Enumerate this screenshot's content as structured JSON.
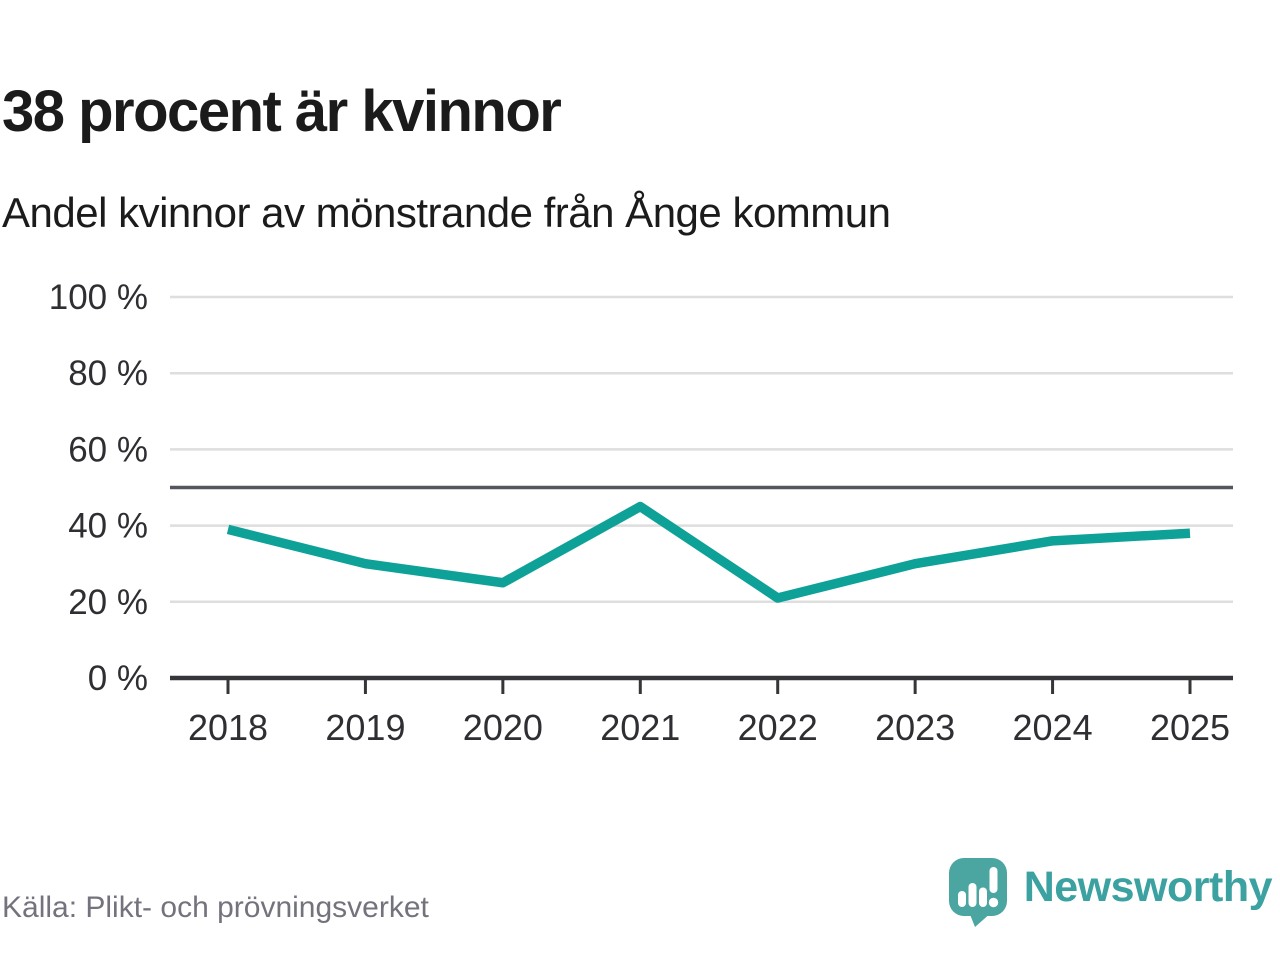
{
  "header": {
    "title": "38 procent är kvinnor",
    "subtitle": "Andel kvinnor av mönstrande från Ånge kommun"
  },
  "chart_data": {
    "type": "line",
    "title": "38 procent är kvinnor",
    "subtitle": "Andel kvinnor av mönstrande från Ånge kommun",
    "x": [
      "2018",
      "2019",
      "2020",
      "2021",
      "2022",
      "2023",
      "2024",
      "2025"
    ],
    "series": [
      {
        "name": "Andel kvinnor av mönstrande",
        "values": [
          39,
          30,
          25,
          45,
          21,
          30,
          36,
          38
        ]
      }
    ],
    "xlabel": "",
    "ylabel": "",
    "ylim": [
      0,
      100
    ],
    "yticks": [
      0,
      20,
      40,
      60,
      80,
      100
    ],
    "ytick_suffix": " %",
    "reference_line": 50,
    "grid": true,
    "legend": "none",
    "line_color": "#0EA197"
  },
  "footer": {
    "source": "Källa: Plikt- och prövningsverket",
    "brand": "Newsworthy"
  },
  "colors": {
    "accent": "#0EA197",
    "grid": "#DEDEDE",
    "reference": "#55555C",
    "axis": "#35353A",
    "title": "#1B1B1B",
    "tick": "#2F2F33",
    "muted": "#73737D",
    "logoBubble": "#4BA6A2",
    "logoText": "#3BA1A1"
  }
}
